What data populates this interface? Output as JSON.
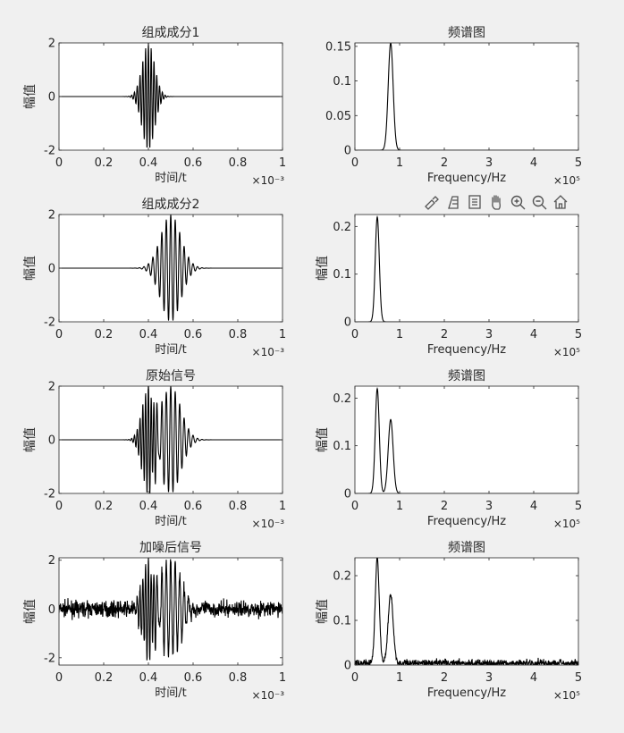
{
  "toolbar": {
    "icons": [
      "brush-icon",
      "data-tip-icon",
      "legend-icon",
      "pan-hand-icon",
      "zoom-in-icon",
      "zoom-out-icon",
      "home-icon"
    ]
  },
  "chart_data": [
    {
      "id": "comp1-time",
      "type": "line",
      "title": "组成成分1",
      "xlabel": "时间/t",
      "ylabel": "幅值",
      "xlim": [
        0,
        1
      ],
      "ylim": [
        -2,
        2
      ],
      "xticks": [
        "0",
        "0.2",
        "0.4",
        "0.6",
        "0.8",
        "1"
      ],
      "yticks": [
        "-2",
        "0",
        "2"
      ],
      "exponent": "×10⁻³",
      "series": [
        {
          "kind": "burst",
          "amplitude": 2.0,
          "center": 0.4,
          "width": 0.028,
          "period": 0.0125
        }
      ]
    },
    {
      "id": "comp1-freq",
      "type": "line",
      "title": "频谱图",
      "xlabel": "Frequency/Hz",
      "ylabel": "",
      "xlim": [
        0,
        5
      ],
      "ylim": [
        0,
        0.155
      ],
      "xticks": [
        "0",
        "1",
        "2",
        "3",
        "4",
        "5"
      ],
      "yticks": [
        "0",
        "0.05",
        "0.1",
        "0.15"
      ],
      "exponent": "×10⁵",
      "series": [
        {
          "kind": "peaks",
          "peaks": [
            {
              "center": 0.8,
              "height": 0.155,
              "width": 0.055
            }
          ]
        }
      ]
    },
    {
      "id": "comp2-time",
      "type": "line",
      "title": "组成成分2",
      "xlabel": "时间/t",
      "ylabel": "幅值",
      "xlim": [
        0,
        1
      ],
      "ylim": [
        -2,
        2
      ],
      "xticks": [
        "0",
        "0.2",
        "0.4",
        "0.6",
        "0.8",
        "1"
      ],
      "yticks": [
        "-2",
        "0",
        "2"
      ],
      "exponent": "×10⁻³",
      "series": [
        {
          "kind": "burst",
          "amplitude": 2.0,
          "center": 0.5,
          "width": 0.045,
          "period": 0.02
        }
      ]
    },
    {
      "id": "comp2-freq",
      "type": "line",
      "title": "",
      "xlabel": "Frequency/Hz",
      "ylabel": "幅值",
      "xlim": [
        0,
        5
      ],
      "ylim": [
        0,
        0.225
      ],
      "xticks": [
        "0",
        "1",
        "2",
        "3",
        "4",
        "5"
      ],
      "yticks": [
        "0",
        "0.1",
        "0.2"
      ],
      "exponent": "×10⁵",
      "series": [
        {
          "kind": "peaks",
          "peaks": [
            {
              "center": 0.5,
              "height": 0.22,
              "width": 0.045
            }
          ]
        }
      ]
    },
    {
      "id": "orig-time",
      "type": "line",
      "title": "原始信号",
      "xlabel": "时间/t",
      "ylabel": "幅值",
      "xlim": [
        0,
        1
      ],
      "ylim": [
        -2,
        2
      ],
      "xticks": [
        "0",
        "0.2",
        "0.4",
        "0.6",
        "0.8",
        "1"
      ],
      "yticks": [
        "-2",
        "0",
        "2"
      ],
      "exponent": "×10⁻³",
      "series": [
        {
          "kind": "sum",
          "parts": [
            {
              "amplitude": 2.0,
              "center": 0.4,
              "width": 0.028,
              "period": 0.0125
            },
            {
              "amplitude": 2.0,
              "center": 0.5,
              "width": 0.045,
              "period": 0.02
            }
          ]
        }
      ]
    },
    {
      "id": "orig-freq",
      "type": "line",
      "title": "频谱图",
      "xlabel": "Frequency/Hz",
      "ylabel": "幅值",
      "xlim": [
        0,
        5
      ],
      "ylim": [
        0,
        0.225
      ],
      "xticks": [
        "0",
        "1",
        "2",
        "3",
        "4",
        "5"
      ],
      "yticks": [
        "0",
        "0.1",
        "0.2"
      ],
      "exponent": "×10⁵",
      "series": [
        {
          "kind": "peaks",
          "peaks": [
            {
              "center": 0.5,
              "height": 0.22,
              "width": 0.045
            },
            {
              "center": 0.8,
              "height": 0.155,
              "width": 0.055
            }
          ]
        }
      ]
    },
    {
      "id": "noisy-time",
      "type": "line",
      "title": "加噪后信号",
      "xlabel": "时间/t",
      "ylabel": "幅值",
      "xlim": [
        0,
        1
      ],
      "ylim": [
        -2.3,
        2.1
      ],
      "xticks": [
        "0",
        "0.2",
        "0.4",
        "0.6",
        "0.8",
        "1"
      ],
      "yticks": [
        "-2",
        "0",
        "2"
      ],
      "exponent": "×10⁻³",
      "series": [
        {
          "kind": "sum-noise",
          "noise": 0.22,
          "parts": [
            {
              "amplitude": 2.0,
              "center": 0.4,
              "width": 0.028,
              "period": 0.0125
            },
            {
              "amplitude": 2.0,
              "center": 0.5,
              "width": 0.045,
              "period": 0.02
            }
          ]
        }
      ]
    },
    {
      "id": "noisy-freq",
      "type": "line",
      "title": "频谱图",
      "xlabel": "Frequency/Hz",
      "ylabel": "幅值",
      "xlim": [
        0,
        5
      ],
      "ylim": [
        0,
        0.24
      ],
      "xticks": [
        "0",
        "1",
        "2",
        "3",
        "4",
        "5"
      ],
      "yticks": [
        "0",
        "0.1",
        "0.2"
      ],
      "exponent": "×10⁵",
      "series": [
        {
          "kind": "peaks-noise",
          "noise": 0.012,
          "peaks": [
            {
              "center": 0.5,
              "height": 0.235,
              "width": 0.045
            },
            {
              "center": 0.8,
              "height": 0.155,
              "width": 0.055
            }
          ]
        }
      ]
    }
  ]
}
